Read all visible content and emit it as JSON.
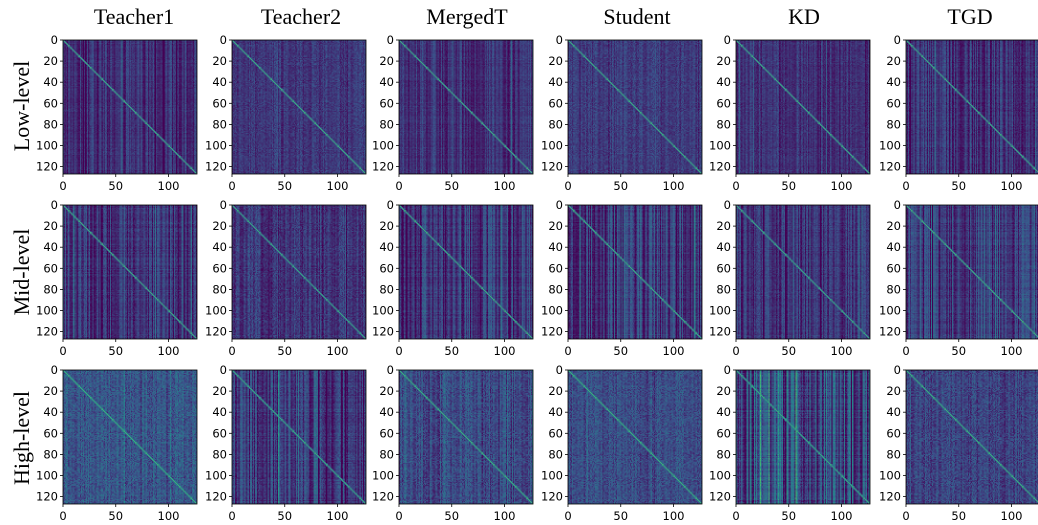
{
  "figure": {
    "columns": [
      "Teacher1",
      "Teacher2",
      "MergedT",
      "Student",
      "KD",
      "TGD"
    ],
    "rows": [
      "Low-level",
      "Mid-level",
      "High-level"
    ]
  },
  "chart_data": {
    "type": "heatmap",
    "description_of_values": "feature similarity matrices (128 x 128) with bright diagonal",
    "matrix_size": 128,
    "xlim": [
      0,
      127
    ],
    "ylim": [
      127,
      0
    ],
    "x_ticks": [
      "0",
      "50",
      "100"
    ],
    "y_ticks": [
      "0",
      "20",
      "40",
      "60",
      "80",
      "100",
      "120"
    ],
    "colormap": [
      "#440154",
      "#3b528b",
      "#21918c",
      "#5ec962",
      "#fde725"
    ],
    "panels": [
      {
        "row": "Low-level",
        "column": "Teacher1",
        "background_level": 0.14,
        "stripe_strength": 0.1,
        "noise": 0.04,
        "diagonal": 0.62
      },
      {
        "row": "Low-level",
        "column": "Teacher2",
        "background_level": 0.16,
        "stripe_strength": 0.05,
        "noise": 0.06,
        "diagonal": 0.62
      },
      {
        "row": "Low-level",
        "column": "MergedT",
        "background_level": 0.14,
        "stripe_strength": 0.1,
        "noise": 0.04,
        "diagonal": 0.62
      },
      {
        "row": "Low-level",
        "column": "Student",
        "background_level": 0.17,
        "stripe_strength": 0.05,
        "noise": 0.06,
        "diagonal": 0.62
      },
      {
        "row": "Low-level",
        "column": "KD",
        "background_level": 0.15,
        "stripe_strength": 0.07,
        "noise": 0.05,
        "diagonal": 0.62
      },
      {
        "row": "Low-level",
        "column": "TGD",
        "background_level": 0.14,
        "stripe_strength": 0.12,
        "noise": 0.05,
        "diagonal": 0.62
      },
      {
        "row": "Mid-level",
        "column": "Teacher1",
        "background_level": 0.15,
        "stripe_strength": 0.13,
        "noise": 0.05,
        "diagonal": 0.62
      },
      {
        "row": "Mid-level",
        "column": "Teacher2",
        "background_level": 0.15,
        "stripe_strength": 0.08,
        "noise": 0.07,
        "diagonal": 0.6
      },
      {
        "row": "Mid-level",
        "column": "MergedT",
        "background_level": 0.15,
        "stripe_strength": 0.15,
        "noise": 0.05,
        "diagonal": 0.62
      },
      {
        "row": "Mid-level",
        "column": "Student",
        "background_level": 0.17,
        "stripe_strength": 0.16,
        "noise": 0.05,
        "diagonal": 0.62
      },
      {
        "row": "Mid-level",
        "column": "KD",
        "background_level": 0.15,
        "stripe_strength": 0.1,
        "noise": 0.05,
        "diagonal": 0.6
      },
      {
        "row": "Mid-level",
        "column": "TGD",
        "background_level": 0.17,
        "stripe_strength": 0.15,
        "noise": 0.05,
        "diagonal": 0.62
      },
      {
        "row": "High-level",
        "column": "Teacher1",
        "background_level": 0.27,
        "stripe_strength": 0.06,
        "noise": 0.1,
        "diagonal": 0.62
      },
      {
        "row": "High-level",
        "column": "Teacher2",
        "background_level": 0.18,
        "stripe_strength": 0.16,
        "noise": 0.06,
        "diagonal": 0.6
      },
      {
        "row": "High-level",
        "column": "MergedT",
        "background_level": 0.22,
        "stripe_strength": 0.08,
        "noise": 0.09,
        "diagonal": 0.62
      },
      {
        "row": "High-level",
        "column": "Student",
        "background_level": 0.24,
        "stripe_strength": 0.05,
        "noise": 0.09,
        "diagonal": 0.62
      },
      {
        "row": "High-level",
        "column": "KD",
        "background_level": 0.2,
        "stripe_strength": 0.22,
        "noise": 0.06,
        "diagonal": 0.6
      },
      {
        "row": "High-level",
        "column": "TGD",
        "background_level": 0.21,
        "stripe_strength": 0.06,
        "noise": 0.09,
        "diagonal": 0.62
      }
    ]
  }
}
